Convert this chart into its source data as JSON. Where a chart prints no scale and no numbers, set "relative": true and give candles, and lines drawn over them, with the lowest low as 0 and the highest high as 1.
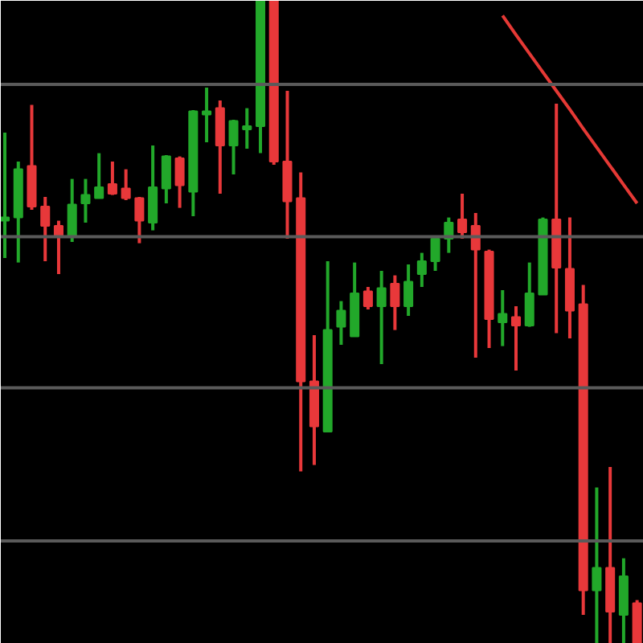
{
  "chart_data": {
    "type": "candlestick",
    "relative": true,
    "tick_labels": false,
    "ref_lines": [
      {
        "axis": "y",
        "value": 0.16,
        "color": "#5a5a5a"
      },
      {
        "axis": "y",
        "value": 0.398,
        "color": "#5a5a5a"
      },
      {
        "axis": "y",
        "value": 0.633,
        "color": "#5a5a5a"
      },
      {
        "axis": "y",
        "value": 0.87,
        "color": "#5a5a5a"
      }
    ],
    "categories": [
      null,
      null,
      null,
      null,
      null,
      null,
      null,
      null,
      null,
      null,
      null,
      null,
      null,
      null,
      null,
      null,
      null,
      null,
      null,
      null,
      null,
      null,
      null,
      null,
      null,
      null,
      null,
      null,
      null,
      null,
      null,
      null,
      null,
      null,
      null,
      null,
      null,
      null,
      null,
      null,
      null,
      null,
      null,
      null,
      null,
      null,
      null,
      null
    ],
    "ohlc": [
      [
        0.658,
        0.795,
        0.6,
        0.663
      ],
      [
        0.663,
        0.75,
        0.593,
        0.738
      ],
      [
        0.743,
        0.838,
        0.675,
        0.68
      ],
      [
        0.68,
        0.695,
        0.595,
        0.65
      ],
      [
        0.65,
        0.658,
        0.575,
        0.635
      ],
      [
        0.633,
        0.723,
        0.625,
        0.683
      ],
      [
        0.685,
        0.723,
        0.655,
        0.698
      ],
      [
        0.693,
        0.763,
        0.693,
        0.71
      ],
      [
        0.715,
        0.75,
        0.698,
        0.7
      ],
      [
        0.708,
        0.738,
        0.69,
        0.693
      ],
      [
        0.693,
        0.695,
        0.623,
        0.658
      ],
      [
        0.655,
        0.775,
        0.643,
        0.71
      ],
      [
        0.708,
        0.76,
        0.685,
        0.758
      ],
      [
        0.755,
        0.758,
        0.678,
        0.713
      ],
      [
        0.703,
        0.83,
        0.665,
        0.828
      ],
      [
        0.823,
        0.865,
        0.78,
        0.828
      ],
      [
        0.833,
        0.845,
        0.7,
        0.775
      ],
      [
        0.775,
        0.815,
        0.73,
        0.813
      ],
      [
        0.8,
        0.833,
        0.77,
        0.805
      ],
      [
        0.805,
        1,
        0.763,
        1
      ],
      [
        1,
        1,
        0.745,
        0.75
      ],
      [
        0.75,
        0.86,
        0.63,
        0.688
      ],
      [
        0.693,
        0.733,
        0.268,
        0.408
      ],
      [
        0.408,
        0.48,
        0.278,
        0.338
      ],
      [
        0.33,
        0.595,
        0.33,
        0.488
      ],
      [
        0.493,
        0.533,
        0.465,
        0.518
      ],
      [
        0.478,
        0.593,
        0.478,
        0.545
      ],
      [
        0.548,
        0.555,
        0.52,
        0.525
      ],
      [
        0.525,
        0.58,
        0.435,
        0.553
      ],
      [
        0.56,
        0.573,
        0.488,
        0.525
      ],
      [
        0.525,
        0.59,
        0.51,
        0.563
      ],
      [
        0.575,
        0.608,
        0.555,
        0.595
      ],
      [
        0.595,
        0.633,
        0.58,
        0.63
      ],
      [
        0.63,
        0.663,
        0.608,
        0.655
      ],
      [
        0.66,
        0.7,
        0.63,
        0.64
      ],
      [
        0.65,
        0.67,
        0.445,
        0.613
      ],
      [
        0.61,
        0.613,
        0.46,
        0.505
      ],
      [
        0.5,
        0.55,
        0.463,
        0.513
      ],
      [
        0.508,
        0.525,
        0.425,
        0.495
      ],
      [
        0.495,
        0.593,
        0.493,
        0.545
      ],
      [
        0.543,
        0.663,
        0.543,
        0.66
      ],
      [
        0.66,
        0.84,
        0.483,
        0.585
      ],
      [
        0.583,
        0.663,
        0.475,
        0.518
      ],
      [
        0.528,
        0.558,
        0.045,
        0.083
      ],
      [
        0.083,
        0.243,
        0,
        0.118
      ],
      [
        0.118,
        0.275,
        0,
        0.05
      ],
      [
        0.045,
        0.133,
        0,
        0.105
      ],
      [
        0.063,
        0.068,
        0,
        0
      ]
    ],
    "colors": [
      "#22a82a",
      "#22a82a",
      "#e8383a",
      "#e8383a",
      "#e8383a",
      "#22a82a",
      "#22a82a",
      "#22a82a",
      "#e8383a",
      "#e8383a",
      "#e8383a",
      "#22a82a",
      "#22a82a",
      "#e8383a",
      "#22a82a",
      "#22a82a",
      "#e8383a",
      "#22a82a",
      "#22a82a",
      "#22a82a",
      "#e8383a",
      "#e8383a",
      "#e8383a",
      "#e8383a",
      "#22a82a",
      "#22a82a",
      "#22a82a",
      "#e8383a",
      "#22a82a",
      "#e8383a",
      "#22a82a",
      "#22a82a",
      "#22a82a",
      "#22a82a",
      "#e8383a",
      "#e8383a",
      "#e8383a",
      "#22a82a",
      "#e8383a",
      "#22a82a",
      "#22a82a",
      "#e8383a",
      "#e8383a",
      "#e8383a",
      "#22a82a",
      "#e8383a",
      "#22a82a",
      "#e8383a"
    ],
    "series": [
      {
        "type": "line",
        "color": "#e53935",
        "values": [
          null,
          null,
          null,
          null,
          null,
          null,
          null,
          null,
          null,
          null,
          null,
          null,
          null,
          null,
          null,
          null,
          null,
          null,
          null,
          null,
          null,
          null,
          null,
          null,
          null,
          null,
          null,
          null,
          null,
          null,
          null,
          null,
          null,
          null,
          null,
          null,
          null,
          0.977,
          0.947,
          0.918,
          0.889,
          0.86,
          0.831,
          0.801,
          0.772,
          0.743,
          0.714,
          0.685
        ]
      }
    ]
  }
}
